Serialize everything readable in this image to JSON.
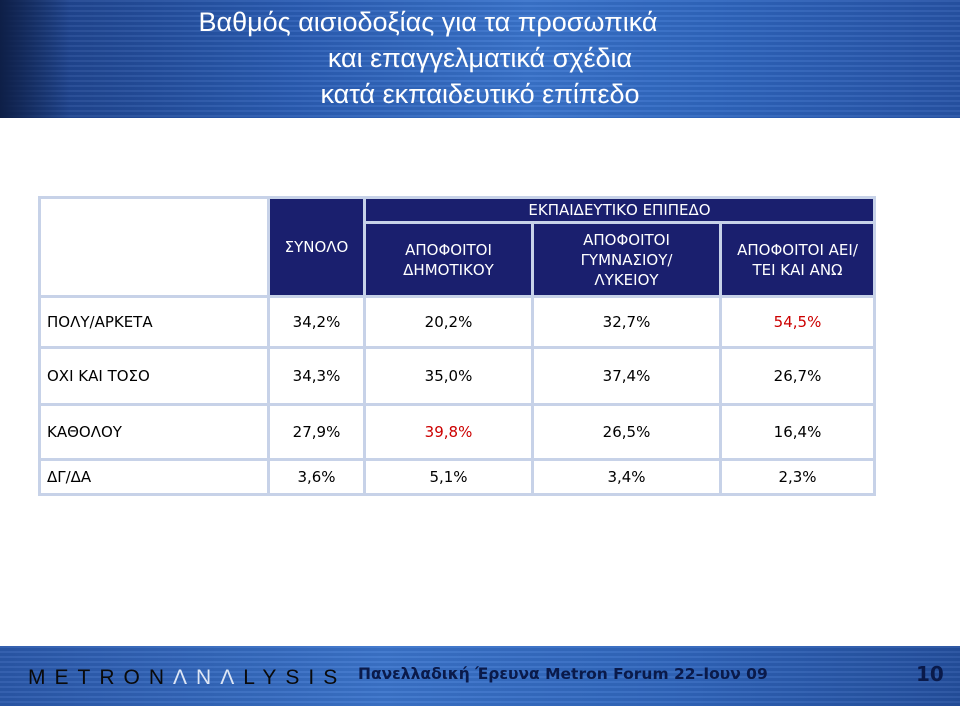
{
  "slide": {
    "title_lines": [
      "Βαθμός αισιοδοξίας για τα προσωπικά",
      "και επαγγελματικά σχέδια",
      "κατά εκπαιδευτικό επίπεδο"
    ]
  },
  "table": {
    "group_header": "ΕΚΠΑΙΔΕΥΤΙΚΟ ΕΠΙΠΕΔΟ",
    "columns": [
      "ΣΥΝΟΛΟ",
      "ΑΠΟΦΟΙΤΟΙ ΔΗΜΟΤΙΚΟΥ",
      "ΑΠΟΦΟΙΤΟΙ ΓΥΜΝΑΣΙΟΥ/ ΛΥΚΕΙΟΥ",
      "ΑΠΟΦΟΙΤΟΙ ΑΕΙ/ΤΕΙ ΚΑΙ ΑΝΩ"
    ],
    "rows": [
      {
        "label": "ΠΟΛΥ/ΑΡΚΕΤΑ",
        "values": [
          "34,2%",
          "20,2%",
          "32,7%",
          "54,5%"
        ]
      },
      {
        "label": "ΟΧΙ ΚΑΙ ΤΟΣΟ",
        "values": [
          "34,3%",
          "35,0%",
          "37,4%",
          "26,7%"
        ]
      },
      {
        "label": "ΚΑΘΟΛΟΥ",
        "values": [
          "27,9%",
          "39,8%",
          "26,5%",
          "16,4%"
        ]
      },
      {
        "label": "ΔΓ/ΔΑ",
        "values": [
          "3,6%",
          "5,1%",
          "3,4%",
          "2,3%"
        ]
      }
    ],
    "highlight_color": "#cc0000",
    "header_color": "#1a1f6e"
  },
  "footer": {
    "logo_dark_1": "METRON",
    "logo_light": "ΛNΛ",
    "logo_dark_2": "LYSIS",
    "caption": "Πανελλαδική Έρευνα Metron Forum 22–Ιουν 09",
    "page_number": "10"
  }
}
